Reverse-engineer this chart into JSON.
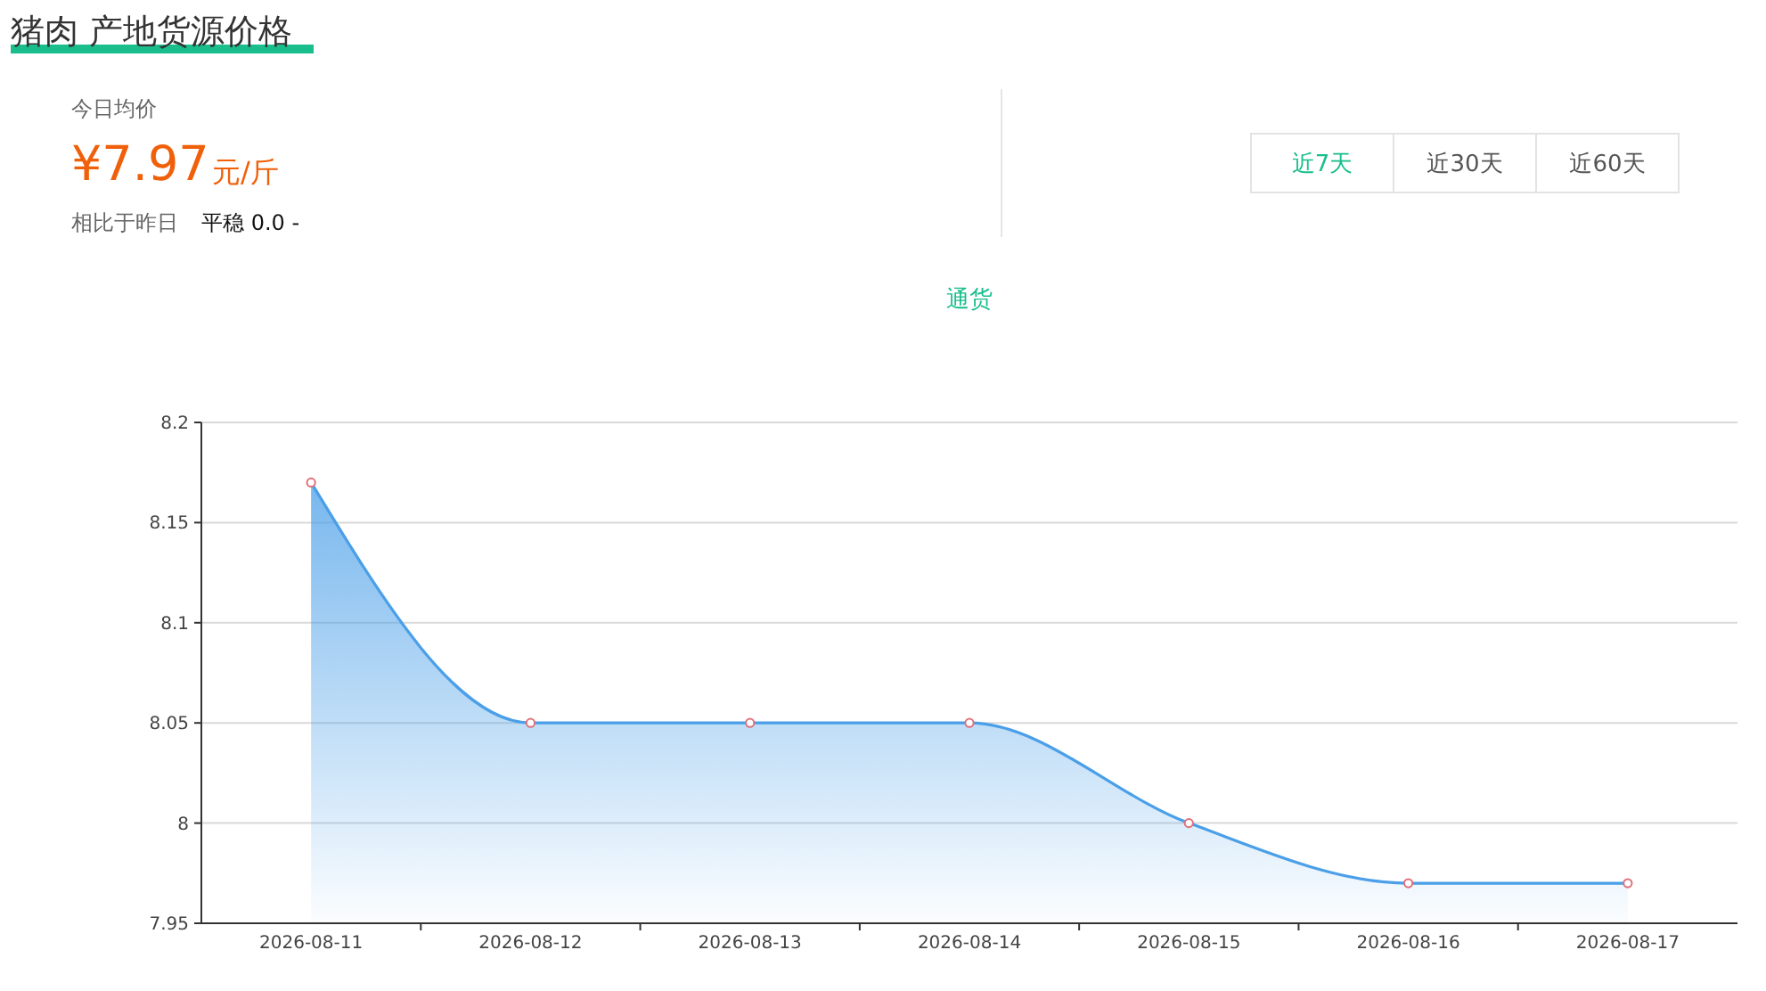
{
  "chart_data": {
    "type": "area",
    "title": "猪肉 产地货源价格",
    "subtitle": "通货",
    "annotations": [
      "今日均价",
      "¥7.97",
      "元/斤",
      "相比于昨日",
      "平稳 0.0 -",
      "近7天",
      "近30天",
      "近60天"
    ],
    "categories": [
      "2026-08-11",
      "2026-08-12",
      "2026-08-13",
      "2026-08-14",
      "2026-08-15",
      "2026-08-16",
      "2026-08-17"
    ],
    "series": [
      {
        "color": "#4a9fe8",
        "values": [
          8.17,
          8.05,
          8.05,
          8.05,
          8.0,
          7.97,
          7.97
        ]
      }
    ],
    "ylim": [
      7.95,
      8.2
    ],
    "yticks": [
      7.95,
      8,
      8.05,
      8.1,
      8.15,
      8.2
    ],
    "grid": "y",
    "marker": "circle"
  }
}
